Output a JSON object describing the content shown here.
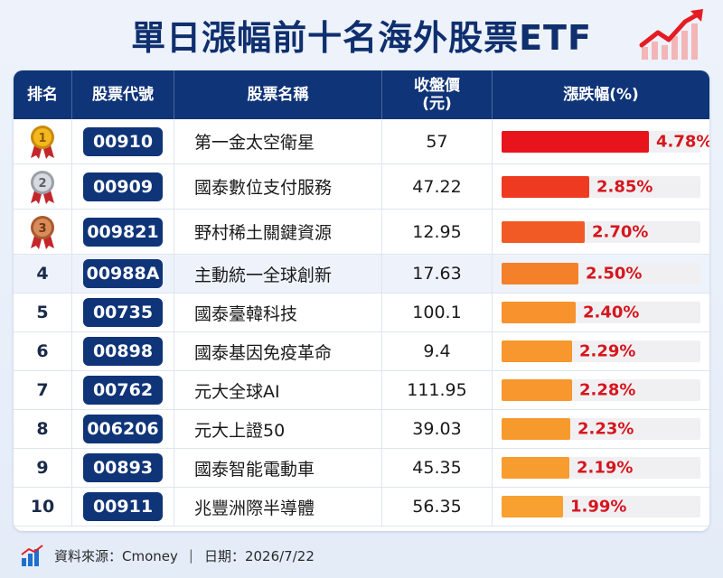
{
  "title": "單日漲幅前十名海外股票ETF",
  "headers": {
    "rank": "排名",
    "code": "股票代號",
    "name": "股票名稱",
    "price_line1": "收盤價",
    "price_line2": "(元)",
    "change": "漲跌幅(%)"
  },
  "chart_data": {
    "type": "table",
    "max_change": 4.78,
    "rows": [
      {
        "rank": "1",
        "medal": "gold",
        "code": "00910",
        "name": "第一金太空衛星",
        "price": "57",
        "change": 4.78,
        "change_label": "4.78%",
        "bar_color": "#e8141c"
      },
      {
        "rank": "2",
        "medal": "silver",
        "code": "00909",
        "name": "國泰數位支付服務",
        "price": "47.22",
        "change": 2.85,
        "change_label": "2.85%",
        "bar_color": "#ef3a22"
      },
      {
        "rank": "3",
        "medal": "bronze",
        "code": "009821",
        "name": "野村稀土關鍵資源",
        "price": "12.95",
        "change": 2.7,
        "change_label": "2.70%",
        "bar_color": "#f25a25"
      },
      {
        "rank": "4",
        "medal": "",
        "code": "00988A",
        "name": "主動統一全球創新",
        "price": "17.63",
        "change": 2.5,
        "change_label": "2.50%",
        "bar_color": "#f5802a"
      },
      {
        "rank": "5",
        "medal": "",
        "code": "00735",
        "name": "國泰臺韓科技",
        "price": "100.1",
        "change": 2.4,
        "change_label": "2.40%",
        "bar_color": "#f7922c"
      },
      {
        "rank": "6",
        "medal": "",
        "code": "00898",
        "name": "國泰基因免疫革命",
        "price": "9.4",
        "change": 2.29,
        "change_label": "2.29%",
        "bar_color": "#f7972d"
      },
      {
        "rank": "7",
        "medal": "",
        "code": "00762",
        "name": "元大全球AI",
        "price": "111.95",
        "change": 2.28,
        "change_label": "2.28%",
        "bar_color": "#f7972d"
      },
      {
        "rank": "8",
        "medal": "",
        "code": "006206",
        "name": "元大上證50",
        "price": "39.03",
        "change": 2.23,
        "change_label": "2.23%",
        "bar_color": "#f79a2d"
      },
      {
        "rank": "9",
        "medal": "",
        "code": "00893",
        "name": "國泰智能電動車",
        "price": "45.35",
        "change": 2.19,
        "change_label": "2.19%",
        "bar_color": "#f79c2e"
      },
      {
        "rank": "10",
        "medal": "",
        "code": "00911",
        "name": "兆豐洲際半導體",
        "price": "56.35",
        "change": 1.99,
        "change_label": "1.99%",
        "bar_color": "#f8a030"
      }
    ]
  },
  "medal_colors": {
    "gold": {
      "fill": "#f3b81f",
      "ring": "#c98a0c",
      "ribbon": "#c4262b",
      "text": "#8a5a00"
    },
    "silver": {
      "fill": "#d7dade",
      "ring": "#9aa0a8",
      "ribbon": "#c4262b",
      "text": "#5a606a"
    },
    "bronze": {
      "fill": "#d98b5a",
      "ring": "#a85a2e",
      "ribbon": "#c4262b",
      "text": "#6e3515"
    }
  },
  "footer": {
    "source": "資料來源：Cmoney",
    "separator": "|",
    "date": "日期：2026/7/22"
  },
  "icons": {
    "title_icon": "trend-up-arrow-icon",
    "footer_icon": "bar-chart-icon"
  }
}
